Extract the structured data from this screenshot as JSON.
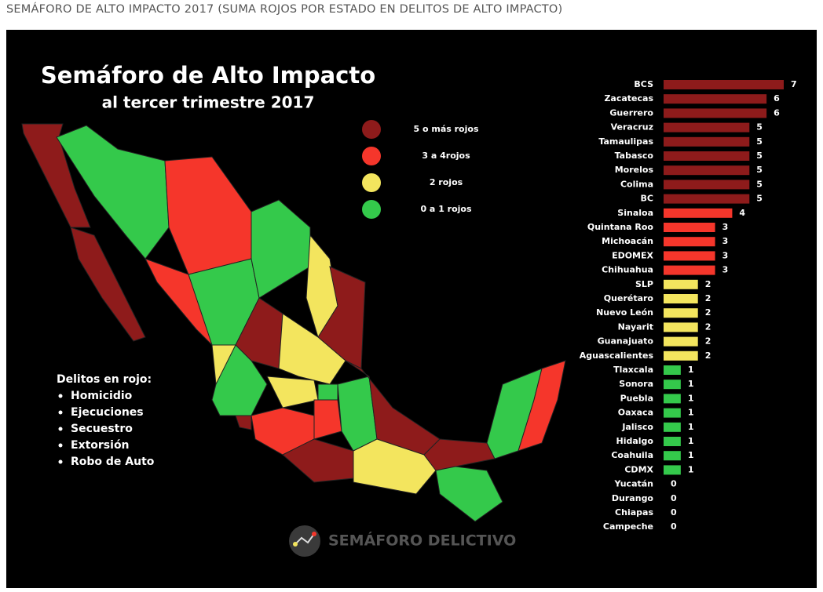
{
  "header": {
    "title": "SEMÁFORO DE ALTO IMPACTO 2017 (SUMA ROJOS POR ESTADO EN DELITOS DE ALTO IMPACTO)"
  },
  "chart_data": {
    "type": "bar",
    "orientation": "horizontal",
    "title": "Semáforo de Alto Impacto",
    "subtitle": "al tercer trimestre 2017",
    "categories": [
      "BCS",
      "Zacatecas",
      "Guerrero",
      "Veracruz",
      "Tamaulipas",
      "Tabasco",
      "Morelos",
      "Colima",
      "BC",
      "Sinaloa",
      "Quintana Roo",
      "Michoacán",
      "EDOMEX",
      "Chihuahua",
      "SLP",
      "Querétaro",
      "Nuevo León",
      "Nayarit",
      "Guanajuato",
      "Aguascalientes",
      "Tlaxcala",
      "Sonora",
      "Puebla",
      "Oaxaca",
      "Jalisco",
      "Hidalgo",
      "Coahuila",
      "CDMX",
      "Yucatán",
      "Durango",
      "Chiapas",
      "Campeche"
    ],
    "values": [
      7,
      6,
      6,
      5,
      5,
      5,
      5,
      5,
      5,
      4,
      3,
      3,
      3,
      3,
      2,
      2,
      2,
      2,
      2,
      2,
      1,
      1,
      1,
      1,
      1,
      1,
      1,
      1,
      0,
      0,
      0,
      0
    ],
    "colors": [
      "#8e1b1b",
      "#8e1b1b",
      "#8e1b1b",
      "#8e1b1b",
      "#8e1b1b",
      "#8e1b1b",
      "#8e1b1b",
      "#8e1b1b",
      "#8e1b1b",
      "#f5362b",
      "#f5362b",
      "#f5362b",
      "#f5362b",
      "#f5362b",
      "#f3e55e",
      "#f3e55e",
      "#f3e55e",
      "#f3e55e",
      "#f3e55e",
      "#f3e55e",
      "#34c94b",
      "#34c94b",
      "#34c94b",
      "#34c94b",
      "#34c94b",
      "#34c94b",
      "#34c94b",
      "#34c94b",
      "#34c94b",
      "#34c94b",
      "#34c94b",
      "#34c94b"
    ],
    "xlim": [
      0,
      7
    ],
    "legend": [
      {
        "label": "5 o más rojos",
        "color": "#8e1b1b"
      },
      {
        "label": "3 a 4rojos",
        "color": "#f5362b"
      },
      {
        "label": "2 rojos",
        "color": "#f3e55e"
      },
      {
        "label": "0 a 1 rojos",
        "color": "#34c94b"
      }
    ],
    "notes": {
      "title": "Delitos en rojo:",
      "items": [
        "Homicidio",
        "Ejecuciones",
        "Secuestro",
        "Extorsión",
        "Robo de Auto"
      ]
    },
    "brand": "SEMÁFORO DELICTIVO"
  }
}
